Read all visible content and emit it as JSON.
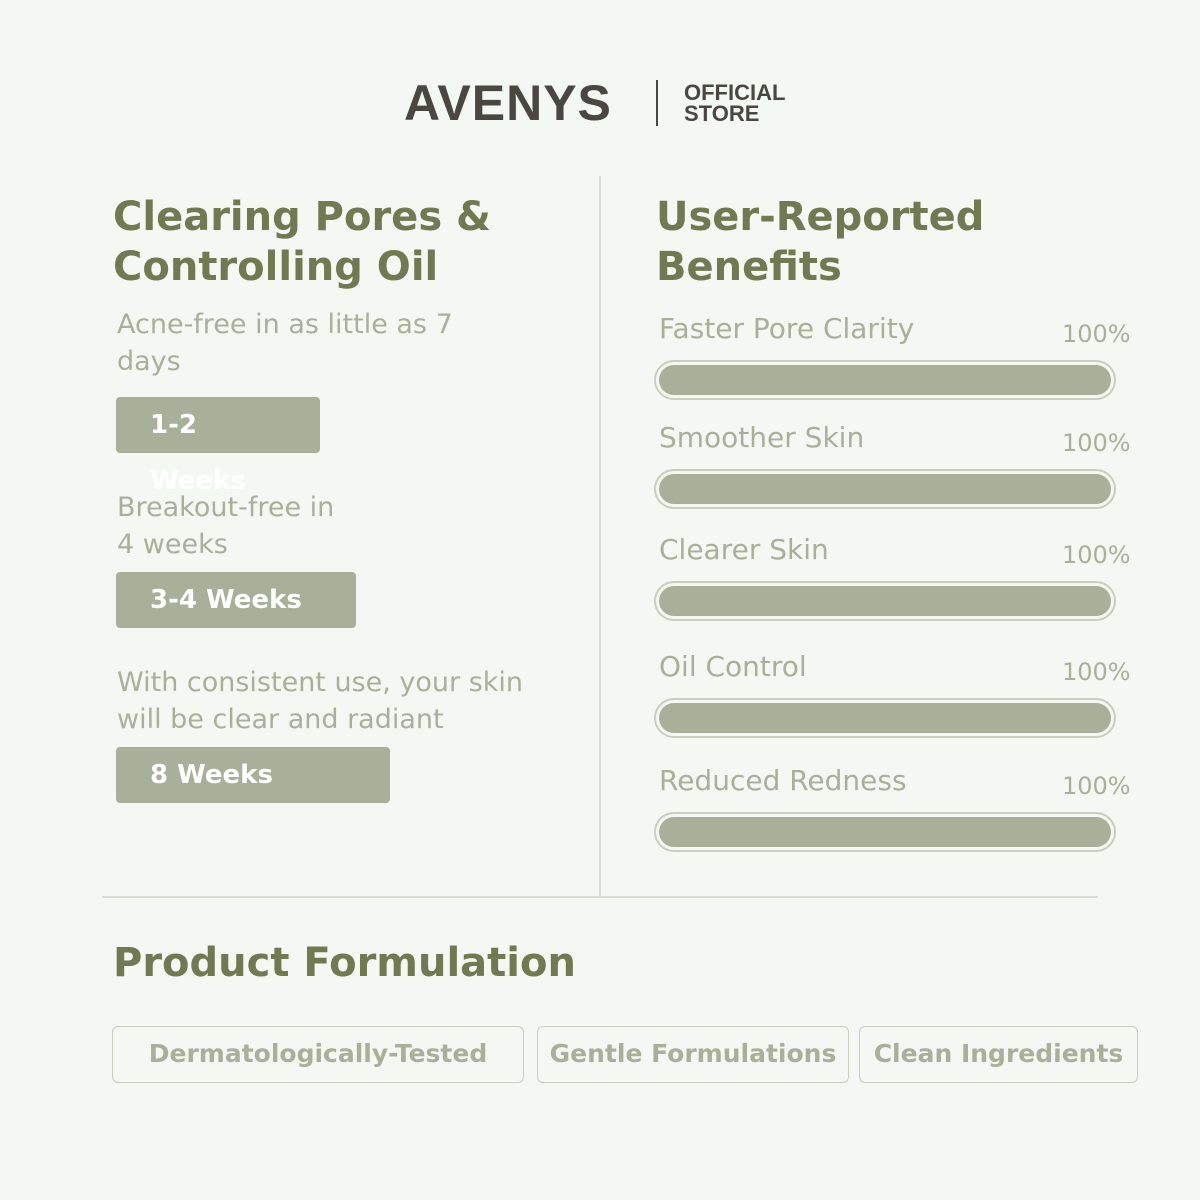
{
  "brand": {
    "name": "AVENYS",
    "line1": "OFFICIAL",
    "line2": "STORE"
  },
  "left": {
    "title_line1": "Clearing Pores &",
    "title_line2": "Controlling Oil",
    "items": [
      {
        "text_line1": "Acne-free in as little as 7",
        "text_line2": "days",
        "badge": "1-2 Weeks"
      },
      {
        "text_line1": "Breakout-free in",
        "text_line2": "4 weeks",
        "badge": "3-4 Weeks"
      },
      {
        "text_line1": "With consistent use, your skin",
        "text_line2": "will be clear and radiant",
        "badge": "8 Weeks"
      }
    ]
  },
  "right": {
    "title_line1": "User-Reported",
    "title_line2": "Benefits",
    "benefits": [
      {
        "label": "Faster Pore Clarity",
        "value": "100%",
        "percent": 100
      },
      {
        "label": "Smoother Skin",
        "value": "100%",
        "percent": 100
      },
      {
        "label": "Clearer Skin",
        "value": "100%",
        "percent": 100
      },
      {
        "label": "Oil Control",
        "value": "100%",
        "percent": 100
      },
      {
        "label": "Reduced Redness",
        "value": "100%",
        "percent": 100
      }
    ]
  },
  "formulation": {
    "title": "Product Formulation",
    "tags": [
      "Dermatologically-Tested",
      "Gentle Formulations",
      "Clean Ingredients"
    ]
  },
  "colors": {
    "background": "#f3f8f2",
    "heading": "#6f7a52",
    "bar": "#a8b09a",
    "brand": "#4a4740"
  }
}
